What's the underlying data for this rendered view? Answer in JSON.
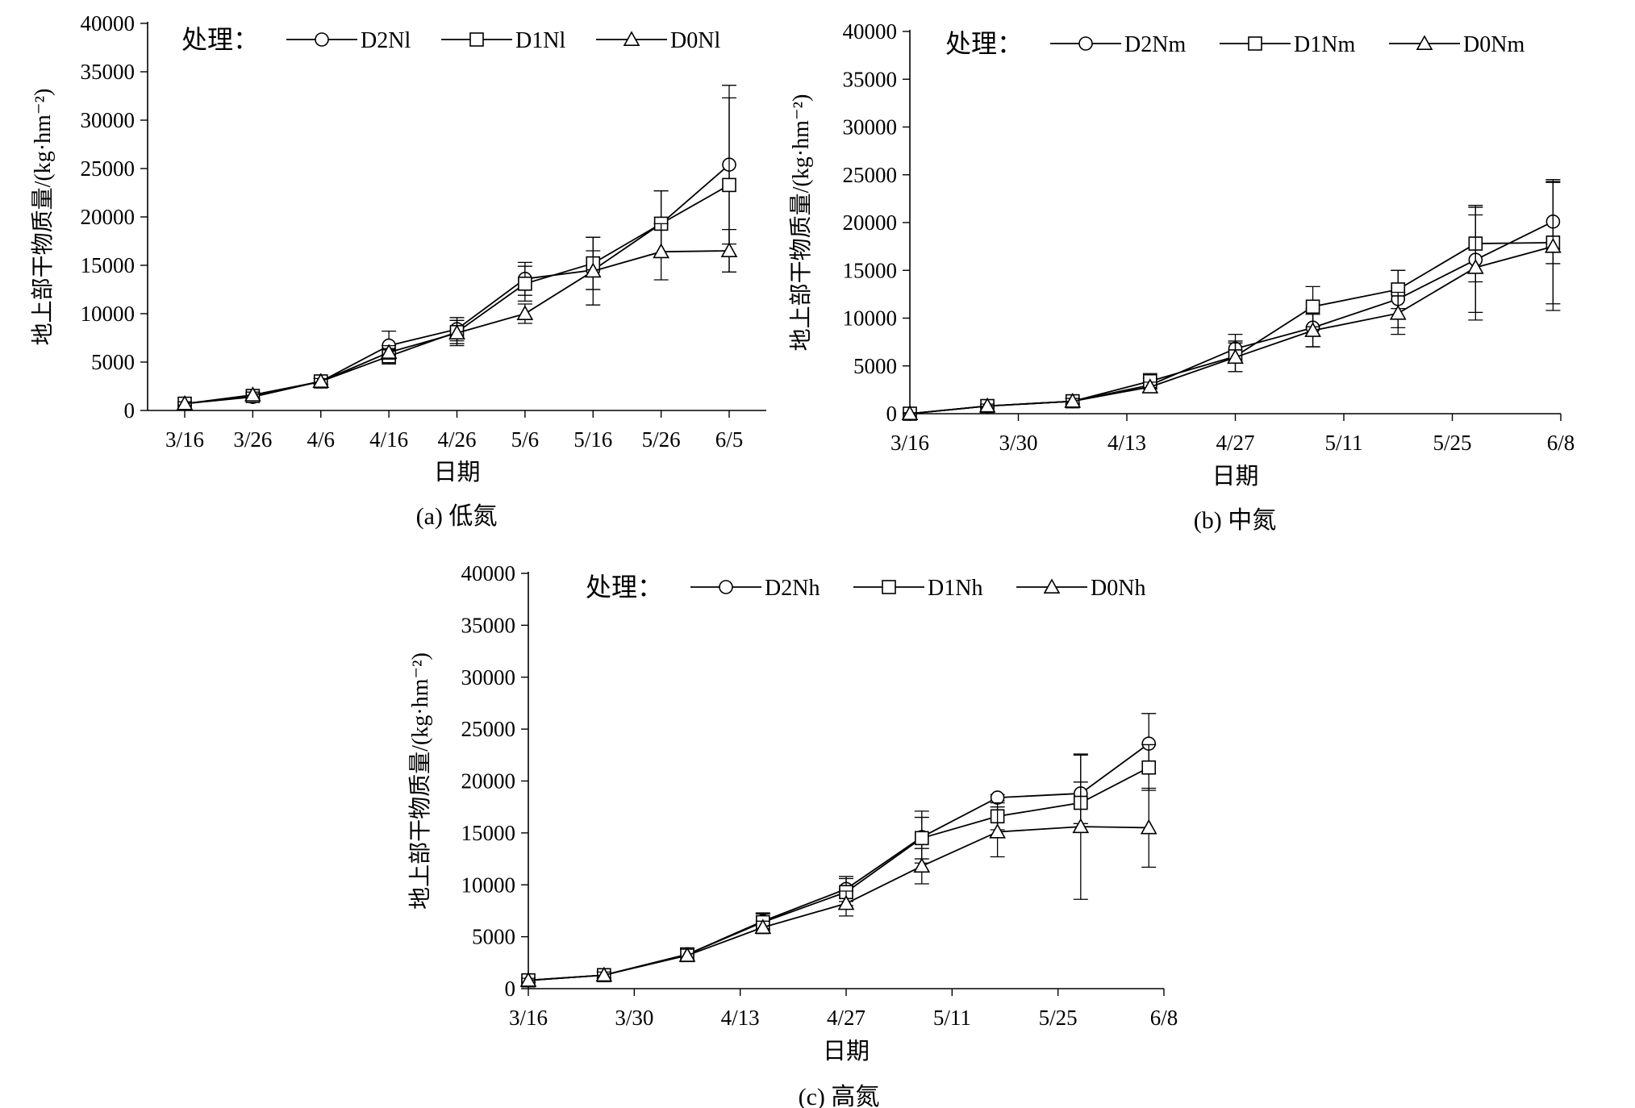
{
  "chart_data": [
    {
      "type": "line",
      "panel_label": "(a) 低氮",
      "xlabel": "日期",
      "ylabel": "地上部干物质量/(kg·hm⁻²)",
      "ylim": [
        0,
        40000
      ],
      "yticks": [
        "0",
        "5000",
        "10000",
        "15000",
        "20000",
        "25000",
        "30000",
        "35000",
        "40000"
      ],
      "x_categories": [
        "3/16",
        "3/26",
        "4/6",
        "4/16",
        "4/26",
        "5/6",
        "5/16",
        "5/26",
        "6/5"
      ],
      "legend_title": "处理：",
      "series": [
        {
          "name": "D2Nl",
          "marker": "circle",
          "points": [
            [
              0,
              700
            ],
            [
              1,
              1400
            ],
            [
              2,
              3000
            ],
            [
              3,
              6700
            ],
            [
              4,
              8400
            ],
            [
              5,
              13600
            ],
            [
              6,
              14500
            ],
            [
              7,
              19300
            ],
            [
              8,
              25400
            ]
          ],
          "errors": [
            200,
            300,
            300,
            1500,
            1200,
            1700,
            2000,
            3400,
            8200
          ]
        },
        {
          "name": "D1Nl",
          "marker": "square",
          "points": [
            [
              0,
              700
            ],
            [
              1,
              1500
            ],
            [
              2,
              3000
            ],
            [
              3,
              5600
            ],
            [
              4,
              8100
            ],
            [
              5,
              13100
            ],
            [
              6,
              15200
            ],
            [
              7,
              19300
            ],
            [
              8,
              23300
            ]
          ],
          "errors": [
            200,
            300,
            300,
            800,
            1200,
            1800,
            2700,
            3400,
            9000
          ]
        },
        {
          "name": "D0Nl",
          "marker": "triangle",
          "points": [
            [
              0,
              700
            ],
            [
              1,
              1600
            ],
            [
              2,
              3000
            ],
            [
              3,
              6000
            ],
            [
              4,
              8000
            ],
            [
              5,
              10000
            ],
            [
              6,
              14400
            ],
            [
              7,
              16400
            ],
            [
              8,
              16500
            ]
          ],
          "errors": [
            200,
            300,
            300,
            700,
            1300,
            1000,
            3500,
            2900,
            2200
          ]
        }
      ]
    },
    {
      "type": "line",
      "panel_label": "(b) 中氮",
      "xlabel": "日期",
      "ylabel": "地上部干物质量/(kg·hm⁻²)",
      "ylim": [
        0,
        40000
      ],
      "yticks": [
        "0",
        "5000",
        "10000",
        "15000",
        "20000",
        "25000",
        "30000",
        "35000",
        "40000"
      ],
      "x_ticks": [
        "3/16",
        "3/30",
        "4/13",
        "4/27",
        "5/11",
        "5/25",
        "6/8"
      ],
      "x_range_days": [
        0,
        84
      ],
      "legend_title": "处理：",
      "series": [
        {
          "name": "D2Nm",
          "marker": "circle",
          "points": [
            [
              0,
              0
            ],
            [
              10,
              800
            ],
            [
              21,
              1300
            ],
            [
              31,
              3000
            ],
            [
              42,
              6800
            ],
            [
              52,
              9000
            ],
            [
              63,
              12000
            ],
            [
              73,
              16100
            ],
            [
              83,
              20100
            ]
          ],
          "errors": [
            100,
            200,
            300,
            700,
            1500,
            2000,
            3000,
            5500,
            4400
          ]
        },
        {
          "name": "D1Nm",
          "marker": "square",
          "points": [
            [
              0,
              0
            ],
            [
              10,
              800
            ],
            [
              21,
              1300
            ],
            [
              31,
              3400
            ],
            [
              42,
              6000
            ],
            [
              52,
              11200
            ],
            [
              63,
              13000
            ],
            [
              73,
              17800
            ],
            [
              83,
              17900
            ]
          ],
          "errors": [
            100,
            200,
            300,
            800,
            1600,
            2100,
            2000,
            4000,
            6400
          ]
        },
        {
          "name": "D0Nm",
          "marker": "triangle",
          "points": [
            [
              0,
              0
            ],
            [
              10,
              800
            ],
            [
              21,
              1300
            ],
            [
              31,
              2800
            ],
            [
              42,
              5900
            ],
            [
              52,
              8700
            ],
            [
              63,
              10500
            ],
            [
              73,
              15300
            ],
            [
              83,
              17500
            ]
          ],
          "errors": [
            100,
            200,
            300,
            500,
            1500,
            1700,
            2200,
            5500,
            6700
          ]
        }
      ]
    },
    {
      "type": "line",
      "panel_label": "(c) 高氮",
      "xlabel": "日期",
      "ylabel": "地上部干物质量/(kg·hm⁻²)",
      "ylim": [
        0,
        40000
      ],
      "yticks": [
        "0",
        "5000",
        "10000",
        "15000",
        "20000",
        "25000",
        "30000",
        "35000",
        "40000"
      ],
      "x_ticks": [
        "3/16",
        "3/30",
        "4/13",
        "4/27",
        "5/11",
        "5/25",
        "6/8"
      ],
      "x_range_days": [
        0,
        84
      ],
      "legend_title": "处理：",
      "series": [
        {
          "name": "D2Nh",
          "marker": "circle",
          "points": [
            [
              0,
              800
            ],
            [
              10,
              1300
            ],
            [
              21,
              3300
            ],
            [
              31,
              6500
            ],
            [
              42,
              9600
            ],
            [
              52,
              14600
            ],
            [
              62,
              18400
            ],
            [
              73,
              18800
            ],
            [
              82,
              23600
            ]
          ],
          "errors": [
            200,
            300,
            600,
            800,
            1200,
            2500,
            300,
            3700,
            2900
          ]
        },
        {
          "name": "D1Nh",
          "marker": "square",
          "points": [
            [
              0,
              800
            ],
            [
              10,
              1300
            ],
            [
              21,
              3300
            ],
            [
              31,
              6400
            ],
            [
              42,
              9300
            ],
            [
              52,
              14500
            ],
            [
              62,
              16600
            ],
            [
              73,
              17900
            ],
            [
              82,
              21300
            ]
          ],
          "errors": [
            200,
            300,
            600,
            800,
            1300,
            2000,
            1300,
            2000,
            2200
          ]
        },
        {
          "name": "D0Nh",
          "marker": "triangle",
          "points": [
            [
              0,
              800
            ],
            [
              10,
              1300
            ],
            [
              21,
              3200
            ],
            [
              31,
              5900
            ],
            [
              42,
              8200
            ],
            [
              52,
              11800
            ],
            [
              62,
              15100
            ],
            [
              73,
              15600
            ],
            [
              82,
              15500
            ]
          ],
          "errors": [
            200,
            300,
            600,
            600,
            1200,
            1700,
            2400,
            7000,
            3800
          ]
        }
      ]
    }
  ]
}
